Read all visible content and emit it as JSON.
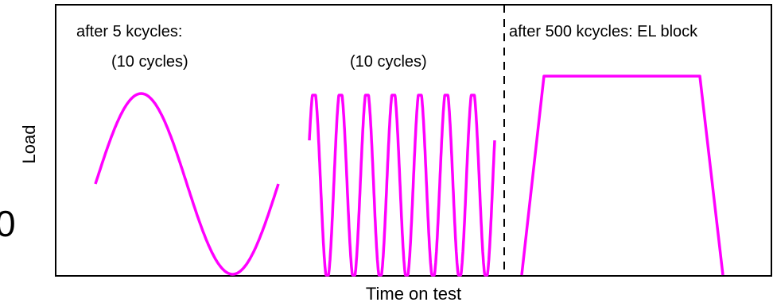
{
  "chart_data": {
    "type": "line",
    "title": "",
    "xlabel": "Time on test",
    "ylabel": "Load",
    "grid": false,
    "legend": "none",
    "stray_text": "0",
    "colors": {
      "line": "#ff00ff",
      "axis": "#000000",
      "divider": "#000000"
    },
    "sections": [
      {
        "name": "",
        "annotations": [
          "after 5  kcycles:",
          "(10 cycles)"
        ],
        "waveform": "sine",
        "cycles_shown": 1
      },
      {
        "name": "",
        "annotations": [
          "(10 cycles)"
        ],
        "waveform": "sine",
        "cycles_shown": 7
      },
      {
        "name": "",
        "annotations": [
          "after 500  kcycles:  EL block"
        ],
        "waveform": "trapezoid",
        "cycles_shown": 1
      }
    ],
    "divider": {
      "style": "dashed",
      "between_sections": [
        2,
        3
      ]
    }
  }
}
